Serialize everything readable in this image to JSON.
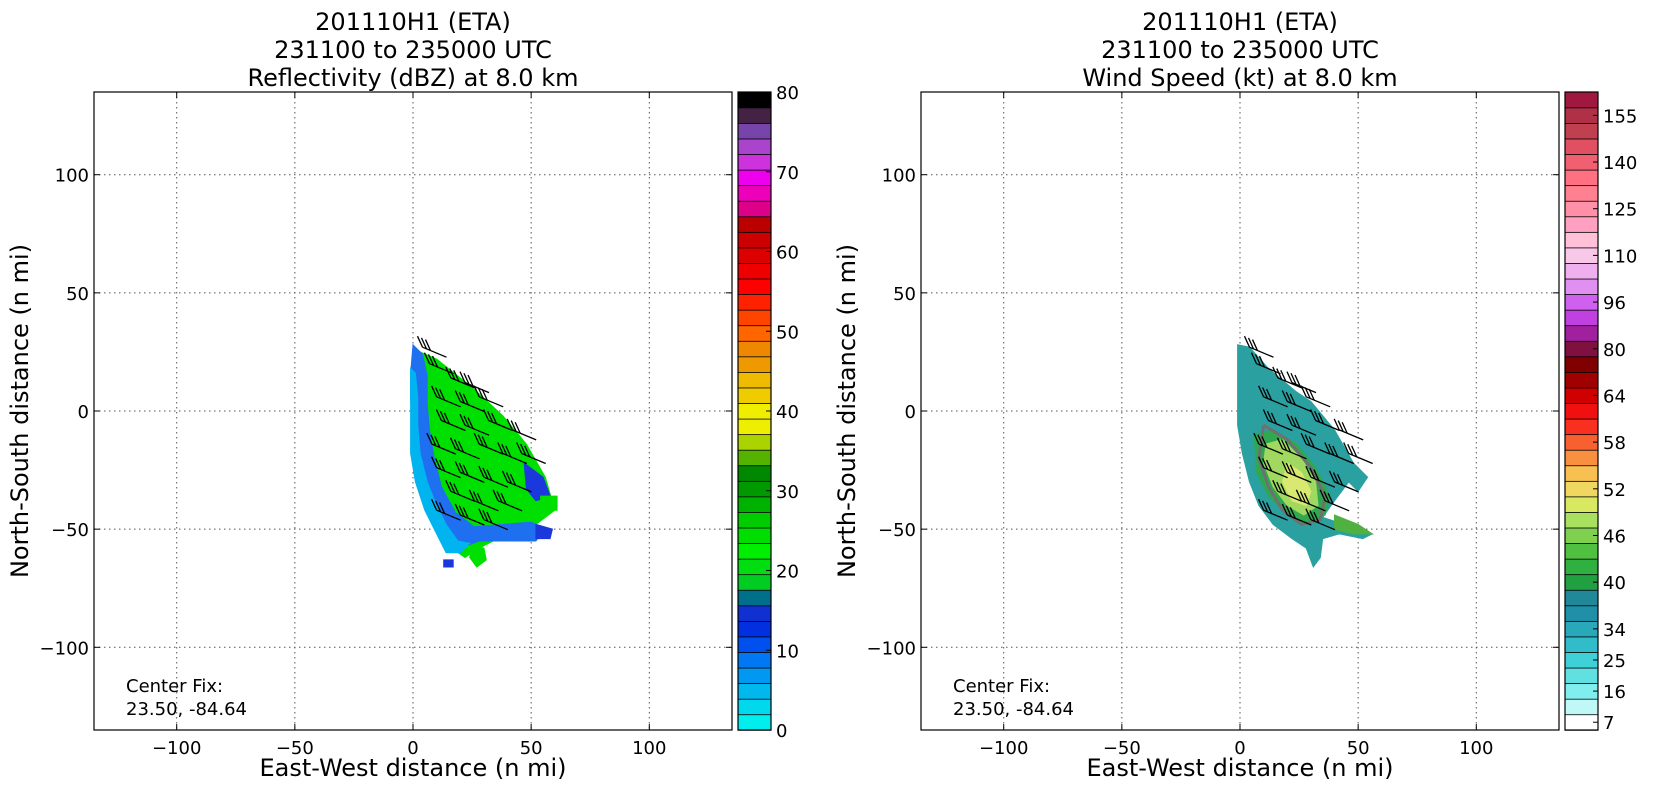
{
  "chart_data": [
    {
      "type": "heatmap",
      "title": [
        "201110H1 (ETA)",
        "231100 to 235000 UTC",
        "Reflectivity (dBZ) at 8.0 km"
      ],
      "xlabel": "East-West distance (n mi)",
      "ylabel": "North-South distance (n mi)",
      "xlim": [
        -135,
        135
      ],
      "ylim": [
        -135,
        135
      ],
      "xticks": [
        -100,
        -50,
        0,
        50,
        100
      ],
      "yticks": [
        -100,
        -50,
        0,
        50,
        100
      ],
      "xtick_labels": [
        "−100",
        "−50",
        "0",
        "50",
        "100"
      ],
      "ytick_labels": [
        "−100",
        "−50",
        "0",
        "50",
        "100"
      ],
      "grid": true,
      "annotation": [
        "Center Fix:",
        "23.50, -84.64"
      ],
      "colorbar": {
        "min": 0,
        "max": 80,
        "tick_values": [
          0,
          10,
          20,
          30,
          40,
          50,
          60,
          70,
          80
        ],
        "tick_labels": [
          "0",
          "10",
          "20",
          "30",
          "40",
          "50",
          "60",
          "70",
          "80"
        ],
        "colors": [
          "#00eeee",
          "#00d8ee",
          "#00b8ee",
          "#0098f0",
          "#0078f4",
          "#0050f0",
          "#0030e0",
          "#1030d0",
          "#006f8a",
          "#00cc22",
          "#00dd11",
          "#00ee00",
          "#00dd00",
          "#00cc00",
          "#00b200",
          "#009900",
          "#008800",
          "#55b300",
          "#aad300",
          "#eeee00",
          "#f0ee00",
          "#eecc00",
          "#eebb00",
          "#ee9900",
          "#ee8800",
          "#ff6600",
          "#ff4400",
          "#ff2200",
          "#ff0000",
          "#ee0000",
          "#dd0000",
          "#cc0000",
          "#bb0000",
          "#dd0088",
          "#ee00bb",
          "#ee00ee",
          "#cc33dd",
          "#aa44cc",
          "#7744aa",
          "#442244",
          "#000000"
        ]
      },
      "regions": [
        {
          "color": "#00e000",
          "points": [
            [
              3,
              25
            ],
            [
              10,
              22
            ],
            [
              25,
              10
            ],
            [
              38,
              -2
            ],
            [
              48,
              -14
            ],
            [
              56,
              -28
            ],
            [
              60,
              -42
            ],
            [
              52,
              -48
            ],
            [
              40,
              -52
            ],
            [
              28,
              -58
            ],
            [
              22,
              -62
            ],
            [
              15,
              -57
            ],
            [
              10,
              -45
            ],
            [
              8,
              -30
            ],
            [
              5,
              -15
            ],
            [
              3,
              0
            ],
            [
              1,
              12
            ]
          ]
        },
        {
          "color": "#1f70f0",
          "points": [
            [
              0,
              28
            ],
            [
              4,
              24
            ],
            [
              6,
              15
            ],
            [
              6,
              3
            ],
            [
              7,
              -8
            ],
            [
              9,
              -20
            ],
            [
              12,
              -32
            ],
            [
              18,
              -43
            ],
            [
              26,
              -49
            ],
            [
              38,
              -48
            ],
            [
              50,
              -47
            ],
            [
              56,
              -50
            ],
            [
              52,
              -55
            ],
            [
              40,
              -55
            ],
            [
              28,
              -55
            ],
            [
              20,
              -58
            ],
            [
              16,
              -57
            ],
            [
              12,
              -50
            ],
            [
              7,
              -40
            ],
            [
              3,
              -30
            ],
            [
              1,
              -20
            ],
            [
              0,
              -8
            ],
            [
              -1,
              5
            ],
            [
              -1,
              16
            ]
          ]
        },
        {
          "color": "#00b4f0",
          "points": [
            [
              -1,
              18
            ],
            [
              1,
              16
            ],
            [
              2,
              6
            ],
            [
              2,
              -6
            ],
            [
              3,
              -18
            ],
            [
              6,
              -30
            ],
            [
              10,
              -40
            ],
            [
              14,
              -48
            ],
            [
              19,
              -55
            ],
            [
              24,
              -56
            ],
            [
              20,
              -60
            ],
            [
              14,
              -60
            ],
            [
              10,
              -52
            ],
            [
              5,
              -42
            ],
            [
              1,
              -30
            ],
            [
              -1,
              -18
            ],
            [
              -1,
              0
            ]
          ]
        },
        {
          "color": "#1a38dc",
          "points": [
            [
              47,
              -22
            ],
            [
              55,
              -28
            ],
            [
              58,
              -36
            ],
            [
              52,
              -38
            ],
            [
              48,
              -33
            ]
          ]
        },
        {
          "color": "#00e000",
          "points": [
            [
              25,
              -57
            ],
            [
              30,
              -58
            ],
            [
              31,
              -63
            ],
            [
              27,
              -66
            ],
            [
              24,
              -62
            ]
          ]
        },
        {
          "color": "#00e000",
          "points": [
            [
              54,
              -36
            ],
            [
              61,
              -36
            ],
            [
              61,
              -42
            ],
            [
              54,
              -42
            ]
          ]
        },
        {
          "color": "#1a38dc",
          "points": [
            [
              13,
              -63
            ],
            [
              17,
              -63
            ],
            [
              17,
              -66
            ],
            [
              13,
              -66
            ]
          ]
        },
        {
          "color": "#1a38dc",
          "points": [
            [
              52,
              -48
            ],
            [
              59,
              -50
            ],
            [
              58,
              -54
            ],
            [
              52,
              -54
            ]
          ]
        }
      ],
      "barbs": [
        [
          4,
          27
        ],
        [
          7,
          20
        ],
        [
          16,
          14
        ],
        [
          22,
          12
        ],
        [
          10,
          6
        ],
        [
          20,
          4
        ],
        [
          28,
          6
        ],
        [
          12,
          -4
        ],
        [
          22,
          -6
        ],
        [
          32,
          -4
        ],
        [
          42,
          -8
        ],
        [
          8,
          -14
        ],
        [
          18,
          -16
        ],
        [
          28,
          -14
        ],
        [
          38,
          -18
        ],
        [
          46,
          -18
        ],
        [
          10,
          -24
        ],
        [
          20,
          -26
        ],
        [
          30,
          -28
        ],
        [
          40,
          -30
        ],
        [
          16,
          -34
        ],
        [
          26,
          -38
        ],
        [
          36,
          -38
        ],
        [
          10,
          -42
        ],
        [
          20,
          -44
        ],
        [
          30,
          -46
        ]
      ]
    },
    {
      "type": "heatmap",
      "title": [
        "201110H1 (ETA)",
        "231100 to 235000 UTC",
        "Wind Speed (kt) at 8.0 km"
      ],
      "xlabel": "East-West distance (n mi)",
      "ylabel": "North-South distance (n mi)",
      "xlim": [
        -135,
        135
      ],
      "ylim": [
        -135,
        135
      ],
      "xticks": [
        -100,
        -50,
        0,
        50,
        100
      ],
      "yticks": [
        -100,
        -50,
        0,
        50,
        100
      ],
      "xtick_labels": [
        "−100",
        "−50",
        "0",
        "50",
        "100"
      ],
      "ytick_labels": [
        "−100",
        "−50",
        "0",
        "50",
        "100"
      ],
      "grid": true,
      "annotation": [
        "Center Fix:",
        "23.50, -84.64"
      ],
      "colorbar": {
        "tick_labels": [
          "7",
          "16",
          "25",
          "34",
          "40",
          "46",
          "52",
          "58",
          "64",
          "80",
          "96",
          "110",
          "125",
          "140",
          "155"
        ],
        "tick_label_levels": [
          0.5,
          2.5,
          4.5,
          6.5,
          9.5,
          12.5,
          15.5,
          18.5,
          21.5,
          24.5,
          27.5,
          30.5,
          33.5,
          36.5,
          39.5
        ],
        "colors": [
          "#ffffff",
          "#c0f8f8",
          "#80eeee",
          "#60e0e0",
          "#40d0d8",
          "#30bcc8",
          "#28a8b8",
          "#2090a8",
          "#208898",
          "#20a040",
          "#30b040",
          "#50c040",
          "#80d050",
          "#a8e060",
          "#d8e860",
          "#f0d860",
          "#f8c050",
          "#f89040",
          "#f86030",
          "#f83020",
          "#f01010",
          "#d00000",
          "#a00000",
          "#800000",
          "#801040",
          "#a020a0",
          "#c040e0",
          "#d060f0",
          "#e090f0",
          "#f0b0f0",
          "#f8c8e8",
          "#ffc0d8",
          "#ffa0c0",
          "#ff90a8",
          "#ff8090",
          "#ff7080",
          "#f06070",
          "#e05060",
          "#c04050",
          "#b03048",
          "#a01840"
        ]
      },
      "regions": [
        {
          "color": "#2aa0a0",
          "points": [
            [
              -1,
              28
            ],
            [
              4,
              27
            ],
            [
              12,
              18
            ],
            [
              24,
              8
            ],
            [
              30,
              4
            ],
            [
              40,
              -8
            ],
            [
              48,
              -22
            ],
            [
              54,
              -28
            ],
            [
              50,
              -34
            ],
            [
              46,
              -30
            ],
            [
              40,
              -38
            ],
            [
              35,
              -45
            ],
            [
              44,
              -48
            ],
            [
              52,
              -50
            ],
            [
              56,
              -52
            ],
            [
              52,
              -54
            ],
            [
              42,
              -52
            ],
            [
              35,
              -54
            ],
            [
              34,
              -62
            ],
            [
              31,
              -66
            ],
            [
              28,
              -58
            ],
            [
              22,
              -54
            ],
            [
              14,
              -48
            ],
            [
              8,
              -40
            ],
            [
              4,
              -30
            ],
            [
              1,
              -18
            ],
            [
              -1,
              -6
            ],
            [
              -1,
              6
            ],
            [
              -1,
              16
            ]
          ]
        },
        {
          "color": "#30a850",
          "points": [
            [
              6,
              -10
            ],
            [
              14,
              -8
            ],
            [
              24,
              -14
            ],
            [
              32,
              -24
            ],
            [
              38,
              -36
            ],
            [
              36,
              -44
            ],
            [
              28,
              -48
            ],
            [
              20,
              -44
            ],
            [
              12,
              -36
            ],
            [
              7,
              -26
            ]
          ]
        },
        {
          "color": "#a0d860",
          "points": [
            [
              11,
              -14
            ],
            [
              18,
              -12
            ],
            [
              26,
              -20
            ],
            [
              32,
              -30
            ],
            [
              33,
              -40
            ],
            [
              27,
              -44
            ],
            [
              20,
              -40
            ],
            [
              14,
              -32
            ],
            [
              10,
              -22
            ]
          ]
        },
        {
          "color": "#d8e870",
          "points": [
            [
              20,
              -22
            ],
            [
              26,
              -26
            ],
            [
              30,
              -34
            ],
            [
              28,
              -40
            ],
            [
              22,
              -38
            ],
            [
              18,
              -30
            ]
          ]
        },
        {
          "color": "#50b040",
          "points": [
            [
              40,
              -44
            ],
            [
              50,
              -48
            ],
            [
              56,
              -52
            ],
            [
              48,
              -52
            ],
            [
              40,
              -50
            ]
          ]
        }
      ],
      "contours": [
        [
          [
            10,
            -6
          ],
          [
            20,
            -12
          ],
          [
            30,
            -24
          ],
          [
            36,
            -36
          ],
          [
            34,
            -46
          ],
          [
            26,
            -48
          ],
          [
            18,
            -42
          ],
          [
            12,
            -32
          ],
          [
            8,
            -20
          ],
          [
            10,
            -6
          ]
        ]
      ],
      "barbs": [
        [
          4,
          27
        ],
        [
          7,
          20
        ],
        [
          16,
          14
        ],
        [
          22,
          12
        ],
        [
          10,
          6
        ],
        [
          20,
          4
        ],
        [
          28,
          6
        ],
        [
          12,
          -4
        ],
        [
          22,
          -6
        ],
        [
          32,
          -4
        ],
        [
          42,
          -8
        ],
        [
          8,
          -14
        ],
        [
          18,
          -16
        ],
        [
          28,
          -14
        ],
        [
          38,
          -18
        ],
        [
          46,
          -18
        ],
        [
          10,
          -24
        ],
        [
          20,
          -26
        ],
        [
          30,
          -28
        ],
        [
          40,
          -30
        ],
        [
          16,
          -34
        ],
        [
          26,
          -38
        ],
        [
          36,
          -38
        ],
        [
          10,
          -42
        ],
        [
          20,
          -44
        ],
        [
          30,
          -46
        ]
      ]
    }
  ]
}
